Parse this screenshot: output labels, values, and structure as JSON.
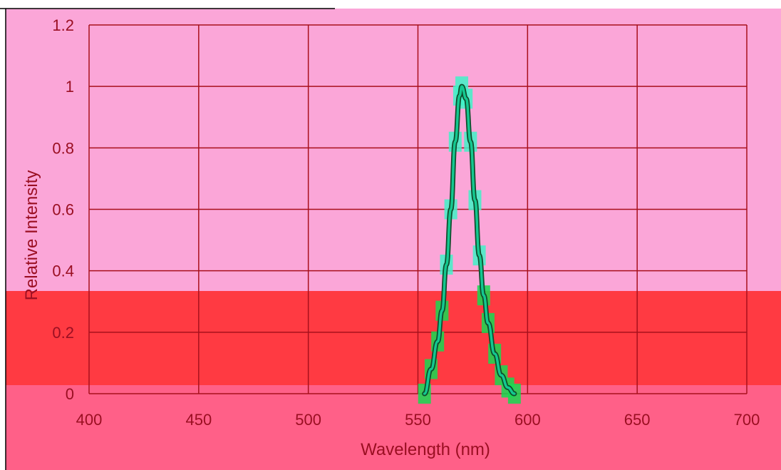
{
  "chart_data": {
    "type": "line",
    "title": "",
    "xlabel": "Wavelength (nm)",
    "ylabel": "Relative Intensity",
    "xlim": [
      400,
      700
    ],
    "ylim": [
      0,
      1.2
    ],
    "x_ticks": [
      "400",
      "450",
      "500",
      "550",
      "600",
      "650",
      "700"
    ],
    "y_ticks": [
      "0",
      "0.2",
      "0.4",
      "0.6",
      "0.8",
      "1",
      "1.2"
    ],
    "grid": true,
    "legend": "none",
    "series": [
      {
        "x": [
          553,
          556,
          559,
          561,
          563,
          565,
          567,
          569,
          570,
          572,
          574,
          576,
          578,
          580,
          582,
          585,
          588,
          591,
          594
        ],
        "y": [
          0.0,
          0.08,
          0.17,
          0.27,
          0.42,
          0.6,
          0.82,
          0.97,
          1.0,
          0.96,
          0.82,
          0.63,
          0.45,
          0.32,
          0.23,
          0.13,
          0.06,
          0.02,
          0.0
        ]
      }
    ]
  },
  "colors": {
    "background_top": "#fba6d8",
    "background_band": "#ff3a42",
    "background_bottom": "#ff6088",
    "grid": "#a8101c",
    "text": "#9a0f22",
    "curve_outer": "#0e4d2c",
    "curve_inner": "#14c890",
    "marker_fill": "#3ff2c8",
    "marker_fill_low": "#15dc50"
  }
}
